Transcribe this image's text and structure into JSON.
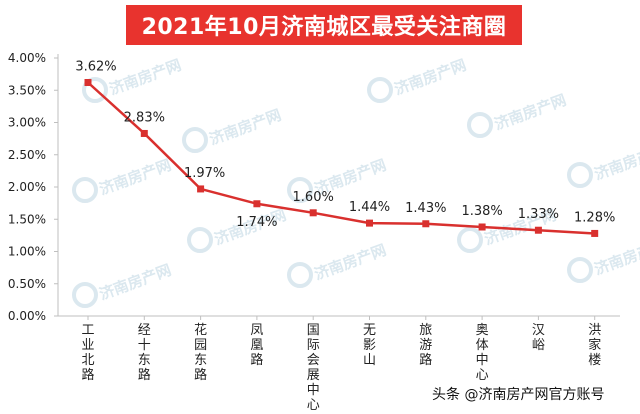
{
  "chart_data": {
    "type": "line",
    "title": "2021年10月济南城区最受关注商圈",
    "categories": [
      "工业北路",
      "经十东路",
      "花园东路",
      "凤凰路",
      "国际会展中心",
      "无影山",
      "旅游路",
      "奥体中心",
      "汉峪",
      "洪家楼"
    ],
    "series": [
      {
        "values": [
          3.62,
          2.83,
          1.97,
          1.74,
          1.6,
          1.44,
          1.43,
          1.38,
          1.33,
          1.28
        ],
        "data_labels": [
          "3.62%",
          "2.83%",
          "1.97%",
          "1.74%",
          "1.60%",
          "1.44%",
          "1.43%",
          "1.38%",
          "1.33%",
          "1.28%"
        ],
        "color": "#d9302e"
      }
    ],
    "yticks": [
      "0.00%",
      "0.50%",
      "1.00%",
      "1.50%",
      "2.00%",
      "2.50%",
      "3.00%",
      "3.50%",
      "4.00%"
    ],
    "ylim": [
      0,
      4
    ],
    "xlabel": "",
    "ylabel": "",
    "grid": false
  },
  "watermark": {
    "text": "济南房产网",
    "color": "#dbe8ef"
  },
  "footer": {
    "credit": "头条 @济南房产网官方账号"
  },
  "colors": {
    "banner": "#e8332e",
    "line": "#d9302e",
    "axis": "#bfbfbf"
  }
}
